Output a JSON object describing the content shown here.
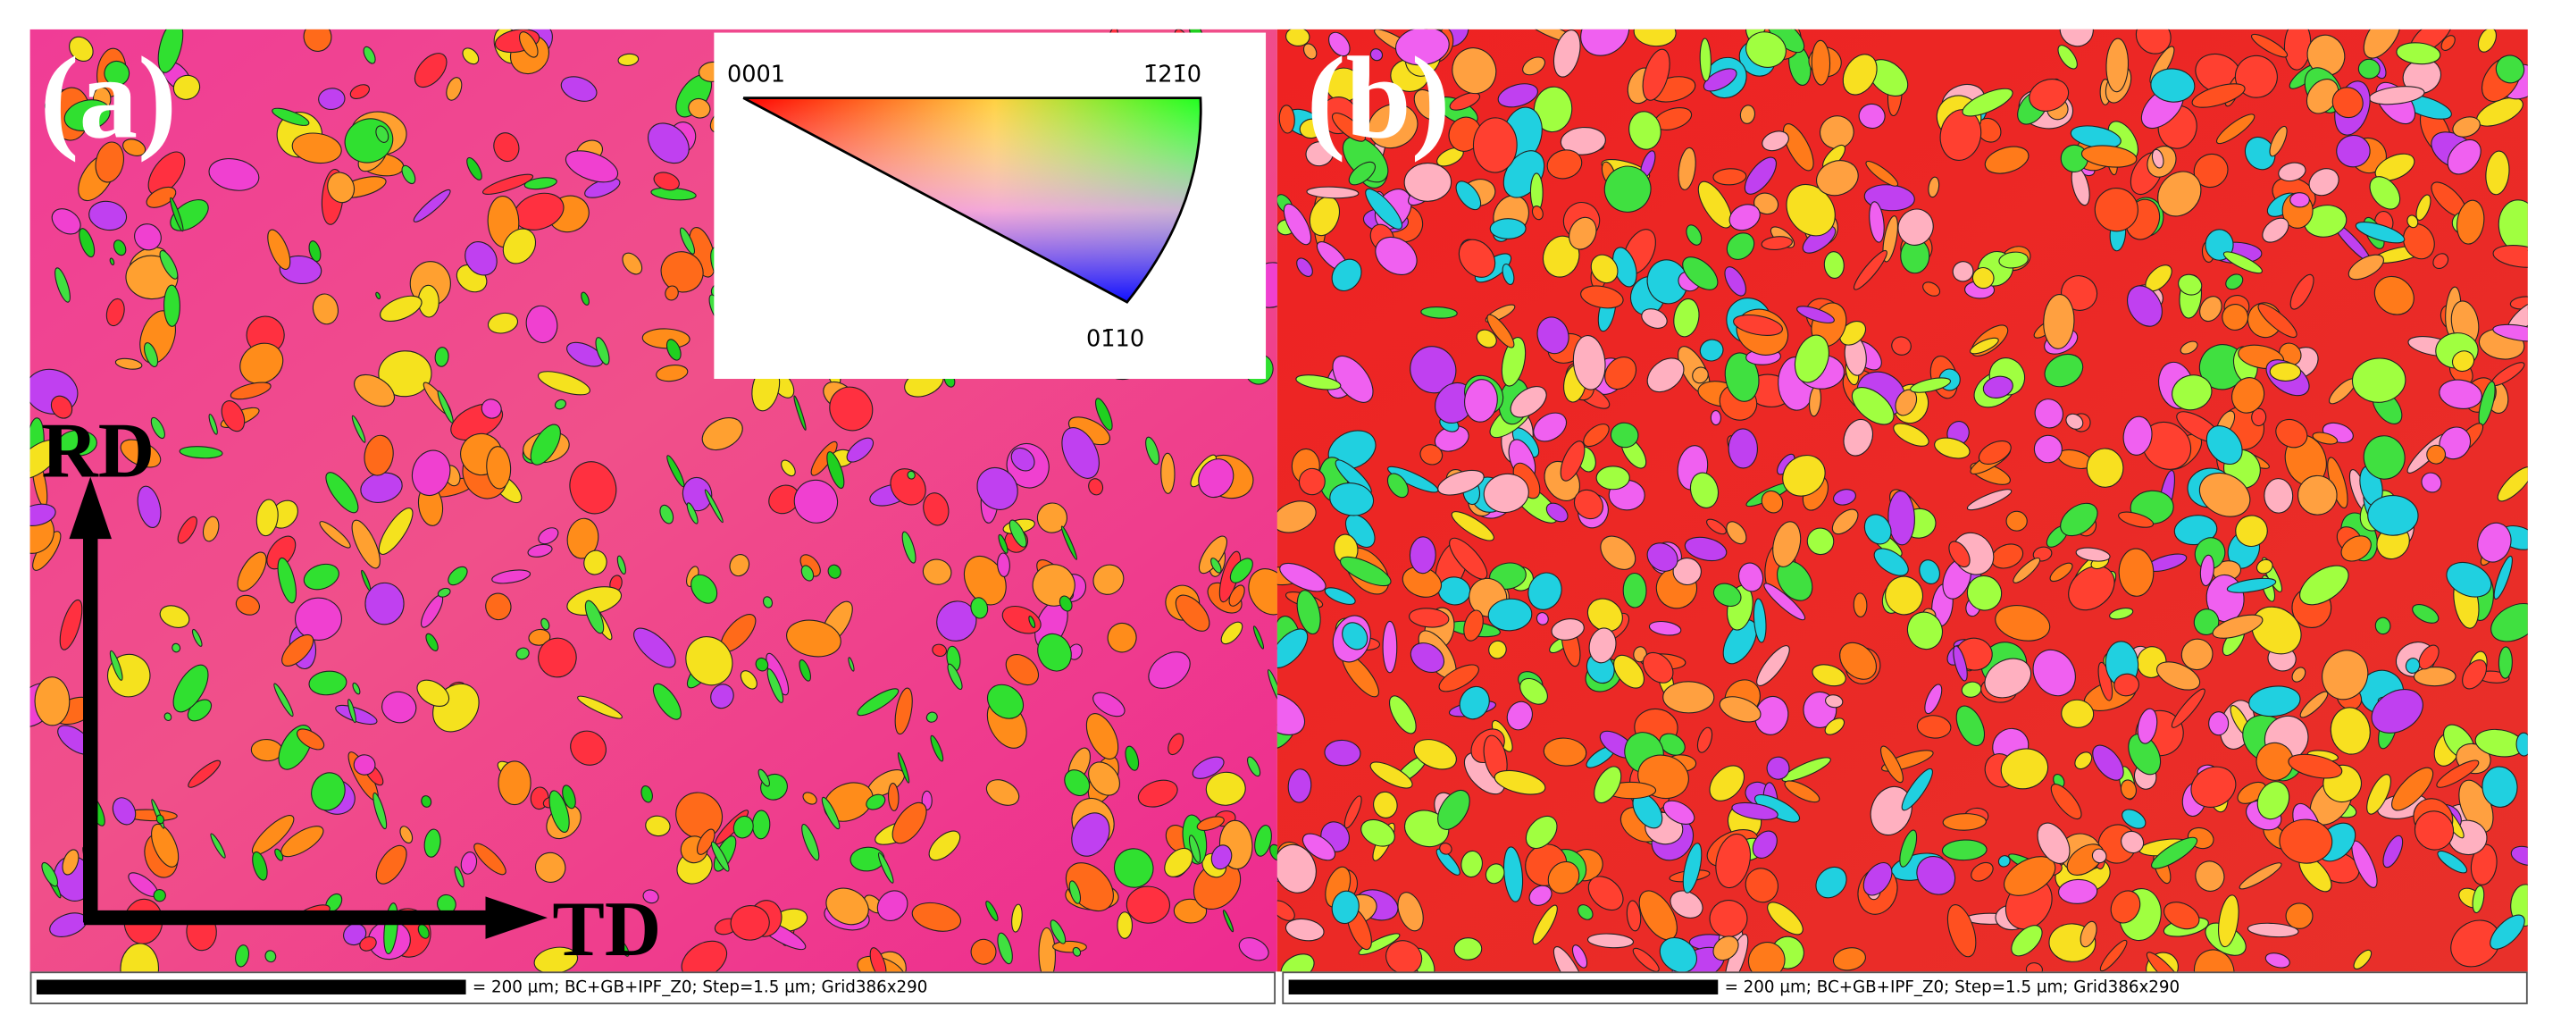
{
  "panels": [
    {
      "label": "(a)",
      "scale_bar": "= 200 µm; BC+GB+IPF_Z0; Step=1.5 µm; Grid386x290"
    },
    {
      "label": "(b)",
      "scale_bar": "= 200 µm; BC+GB+IPF_Z0; Step=1.5 µm; Grid386x290"
    }
  ],
  "ipf_legend": {
    "corners": [
      "0001",
      "1̄21̄0",
      "01̄10"
    ]
  },
  "directions": {
    "vertical": "RD",
    "horizontal": "TD"
  }
}
